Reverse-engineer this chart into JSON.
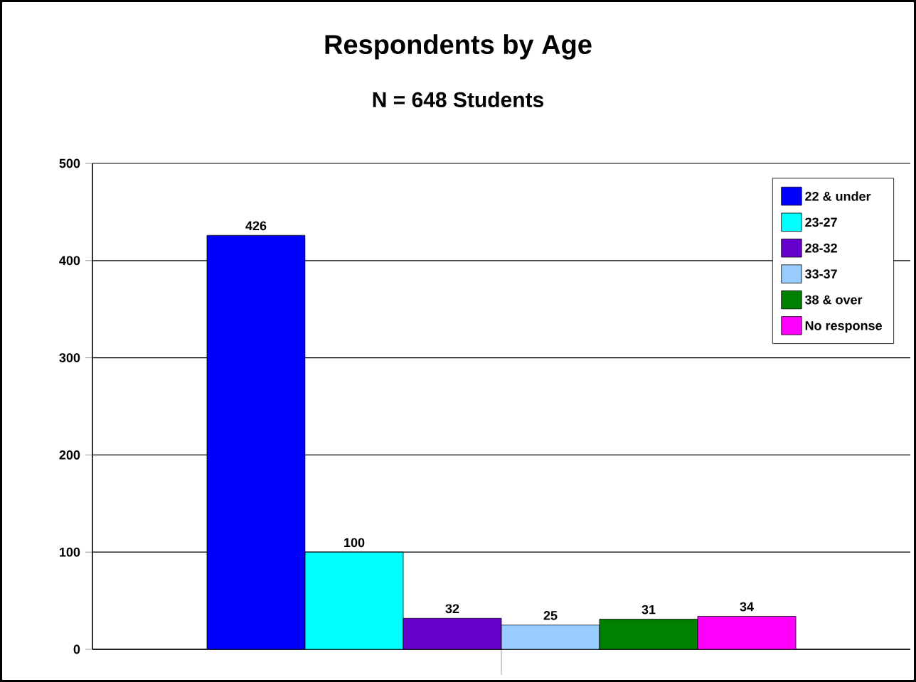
{
  "chart_data": {
    "type": "bar",
    "title": "Respondents by Age",
    "subtitle": "N = 648 Students",
    "categories": [
      null
    ],
    "series": [
      {
        "name": "22 & under",
        "color": "#0000ff",
        "values": [
          426
        ]
      },
      {
        "name": "23-27",
        "color": "#00ffff",
        "values": [
          100
        ]
      },
      {
        "name": "28-32",
        "color": "#6600cc",
        "values": [
          32
        ]
      },
      {
        "name": "33-37",
        "color": "#99ccff",
        "values": [
          25
        ]
      },
      {
        "name": "38 & over",
        "color": "#008000",
        "values": [
          31
        ]
      },
      {
        "name": "No response",
        "color": "#ff00ff",
        "values": [
          34
        ]
      }
    ],
    "ylim": [
      0,
      500
    ],
    "yticks": [
      0,
      100,
      200,
      300,
      400,
      500
    ],
    "grid": "y",
    "legend": "top right",
    "data_labels": true
  }
}
